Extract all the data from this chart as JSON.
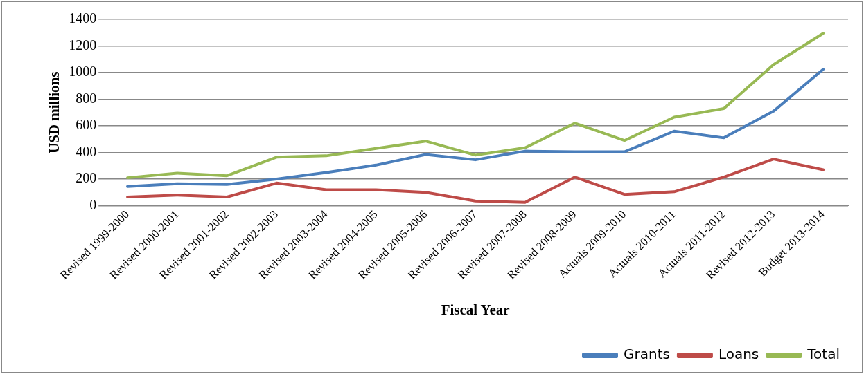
{
  "chart_data": {
    "type": "line",
    "xlabel": "Fiscal Year",
    "ylabel": "USD millions",
    "categories": [
      "Revised 1999-2000",
      "Revised 2000-2001",
      "Revised 2001-2002",
      "Revised 2002-2003",
      "Revised 2003-2004",
      "Revised 2004-2005",
      "Revised 2005-2006",
      "Revised 2006-2007",
      "Revised 2007-2008",
      "Revised 2008-2009",
      "Actuals 2009-2010",
      "Actuals 2010-2011",
      "Actuals 2011-2012",
      "Revised 2012-2013",
      "Budget 2013-2014"
    ],
    "series": [
      {
        "name": "Grants",
        "color": "#4a7ebb",
        "values": [
          145,
          165,
          160,
          200,
          250,
          305,
          385,
          345,
          410,
          405,
          405,
          560,
          510,
          710,
          1025
        ]
      },
      {
        "name": "Loans",
        "color": "#be4b48",
        "values": [
          65,
          80,
          65,
          170,
          120,
          120,
          100,
          35,
          25,
          215,
          85,
          105,
          215,
          350,
          270
        ]
      },
      {
        "name": "Total",
        "color": "#98b954",
        "values": [
          210,
          245,
          225,
          365,
          375,
          430,
          485,
          380,
          435,
          620,
          490,
          665,
          730,
          1060,
          1295
        ]
      }
    ],
    "ylim": [
      0,
      1400
    ],
    "yticks": [
      0,
      200,
      400,
      600,
      800,
      1000,
      1200,
      1400
    ],
    "grid": "y",
    "legend": "bottom right",
    "marker": "none",
    "line_style": "solid"
  }
}
